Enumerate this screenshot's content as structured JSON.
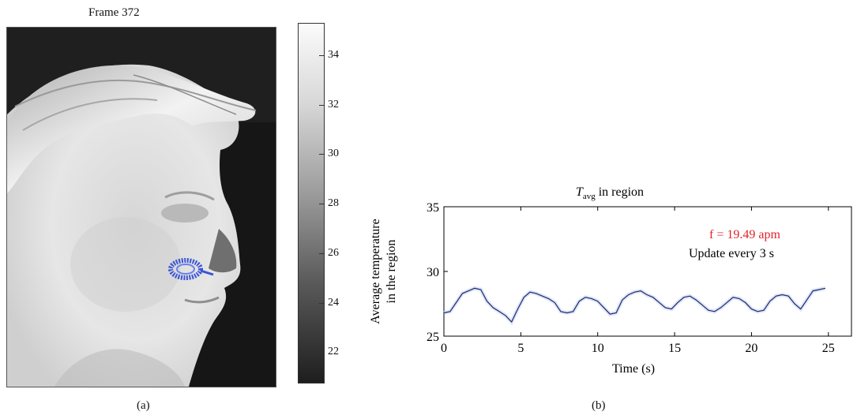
{
  "panel_a": {
    "title": "Frame 372",
    "caption": "(a)",
    "colorbar": {
      "ticks": [
        "34",
        "32",
        "30",
        "28",
        "26",
        "24",
        "22"
      ],
      "range": [
        20.8,
        35.3
      ]
    },
    "roi_color": "#3b55d6"
  },
  "panel_b": {
    "caption": "(b)"
  },
  "chart_data": {
    "type": "line",
    "title_main": "T",
    "title_sub": "avg",
    "title_rest": " in region",
    "xlabel": "Time (s)",
    "ylabel_line1": "Average temperature",
    "ylabel_line2": "in the region",
    "xlim": [
      0,
      26.5
    ],
    "ylim": [
      25,
      35
    ],
    "xticks": [
      "0",
      "5",
      "10",
      "15",
      "20",
      "25"
    ],
    "yticks": [
      "25",
      "30",
      "35"
    ],
    "annotation_freq": "f = 19.49 apm",
    "annotation_freq_color": "#e0232a",
    "annotation_update": "Update every 3 s",
    "series": [
      {
        "color": "#1a2b6b",
        "x": [
          0,
          0.4,
          0.8,
          1.2,
          1.6,
          2.0,
          2.4,
          2.8,
          3.2,
          3.6,
          4.0,
          4.4,
          4.8,
          5.2,
          5.6,
          6.0,
          6.4,
          6.8,
          7.2,
          7.6,
          8.0,
          8.4,
          8.8,
          9.2,
          9.6,
          10.0,
          10.4,
          10.8,
          11.2,
          11.6,
          12.0,
          12.4,
          12.8,
          13.2,
          13.6,
          14.0,
          14.4,
          14.8,
          15.2,
          15.6,
          16.0,
          16.4,
          16.8,
          17.2,
          17.6,
          18.0,
          18.4,
          18.8,
          19.2,
          19.6,
          20.0,
          20.4,
          20.8,
          21.2,
          21.6,
          22.0,
          22.4,
          22.8,
          23.2,
          23.6,
          24.0,
          24.4,
          24.8
        ],
        "y": [
          26.8,
          26.9,
          27.6,
          28.3,
          28.5,
          28.7,
          28.6,
          27.7,
          27.2,
          26.9,
          26.6,
          26.1,
          27.1,
          28.0,
          28.4,
          28.3,
          28.1,
          27.9,
          27.6,
          26.9,
          26.8,
          26.9,
          27.7,
          28.0,
          27.9,
          27.7,
          27.2,
          26.7,
          26.8,
          27.8,
          28.2,
          28.4,
          28.5,
          28.2,
          28.0,
          27.6,
          27.2,
          27.1,
          27.6,
          28.0,
          28.1,
          27.8,
          27.4,
          27.0,
          26.9,
          27.2,
          27.6,
          28.0,
          27.9,
          27.6,
          27.1,
          26.9,
          27.0,
          27.7,
          28.1,
          28.2,
          28.1,
          27.5,
          27.1,
          27.8,
          28.5,
          28.6,
          28.7
        ]
      }
    ]
  }
}
